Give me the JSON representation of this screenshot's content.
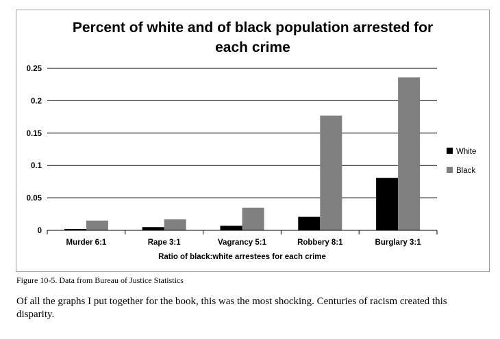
{
  "chart_data": {
    "type": "bar",
    "title_lines": [
      "Percent of white and of black population arrested for",
      "each crime"
    ],
    "xlabel": "Ratio of black:white arrestees for each crime",
    "ylabel": "",
    "categories": [
      "Murder  6:1",
      "Rape 3:1",
      "Vagrancy 5:1",
      "Robbery 8:1",
      "Burglary 3:1"
    ],
    "series": [
      {
        "name": "White",
        "color": "#000000",
        "values": [
          0.002,
          0.005,
          0.007,
          0.021,
          0.081
        ]
      },
      {
        "name": "Black",
        "color": "#808080",
        "values": [
          0.015,
          0.017,
          0.035,
          0.177,
          0.236
        ]
      }
    ],
    "ylim": [
      0,
      0.25
    ],
    "yticks": [
      {
        "value": 0.25,
        "label": "0.25"
      },
      {
        "value": 0.2,
        "label": "0.2"
      },
      {
        "value": 0.15,
        "label": "0.15"
      },
      {
        "value": 0.1,
        "label": "0.1"
      },
      {
        "value": 0.05,
        "label": "0.05"
      },
      {
        "value": 0,
        "label": "0"
      }
    ],
    "grid": true,
    "legend_position": "right"
  },
  "caption": "Figure 10-5. Data from Bureau of Justice Statistics",
  "commentary": "Of all the graphs I put together for the book, this was the most shocking. Centuries of racism created this disparity."
}
